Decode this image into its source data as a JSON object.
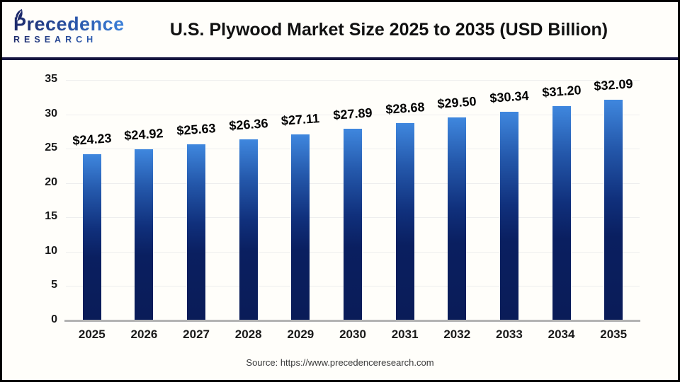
{
  "header": {
    "logo": {
      "line1": "Precedence",
      "line2": "RESEARCH"
    },
    "title": "U.S. Plywood Market Size 2025 to 2035 (USD Billion)"
  },
  "footer": {
    "source": "Source: https://www.precedenceresearch.com"
  },
  "colors": {
    "bar_gradient_top": "#3f87de",
    "bar_gradient_bottom": "#0a1c58",
    "divider_navy": "#15153f",
    "axis_line": "#b3b3b3",
    "gridline": "#eeeeee",
    "logo_navy": "#1d2a6b",
    "logo_blue": "#3d82da"
  },
  "chart_data": {
    "type": "bar",
    "title": "U.S. Plywood Market Size 2025 to 2035 (USD Billion)",
    "xlabel": "",
    "ylabel": "",
    "categories": [
      "2025",
      "2026",
      "2027",
      "2028",
      "2029",
      "2030",
      "2031",
      "2032",
      "2033",
      "2034",
      "2035"
    ],
    "values": [
      24.23,
      24.92,
      25.63,
      26.36,
      27.11,
      27.89,
      28.68,
      29.5,
      30.34,
      31.2,
      32.09
    ],
    "value_labels": [
      "$24.23",
      "$24.92",
      "$25.63",
      "$26.36",
      "$27.11",
      "$27.89",
      "$28.68",
      "$29.50",
      "$30.34",
      "$31.20",
      "$32.09"
    ],
    "ylim": [
      0,
      35
    ],
    "yticks": [
      0,
      5,
      10,
      15,
      20,
      25,
      30,
      35
    ],
    "grid": true,
    "legend_position": "none"
  }
}
